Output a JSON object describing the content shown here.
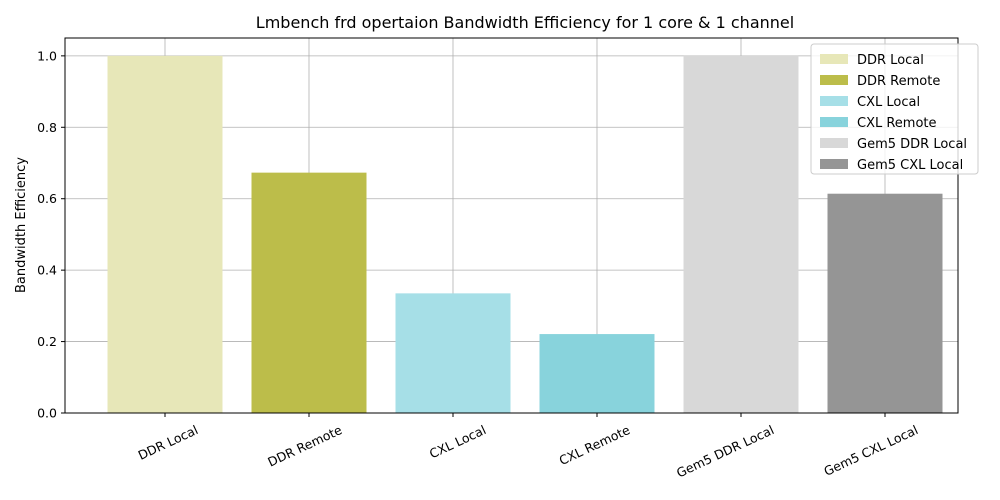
{
  "chart_data": {
    "type": "bar",
    "title": "Lmbench frd opertaion Bandwidth Efficiency for 1 core & 1 channel",
    "xlabel": "",
    "ylabel": "Bandwidth Efficiency",
    "categories": [
      "DDR Local",
      "DDR Remote",
      "CXL Local",
      "CXL Remote",
      "Gem5 DDR Local",
      "Gem5 CXL Local"
    ],
    "values": [
      1.0,
      0.673,
      0.335,
      0.221,
      1.0,
      0.614
    ],
    "colors": [
      "#e7e7b8",
      "#bcbd4a",
      "#a6dfe7",
      "#88d3dc",
      "#d8d8d8",
      "#959595"
    ],
    "ylim": [
      0,
      1.05
    ],
    "yticks": [
      "0.0",
      "0.2",
      "0.4",
      "0.6",
      "0.8",
      "1.0"
    ],
    "ytick_values": [
      0.0,
      0.2,
      0.4,
      0.6,
      0.8,
      1.0
    ],
    "grid": true,
    "legend": {
      "placement": "top-right",
      "entries": [
        "DDR Local",
        "DDR Remote",
        "CXL Local",
        "CXL Remote",
        "Gem5 DDR Local",
        "Gem5 CXL Local"
      ]
    }
  }
}
